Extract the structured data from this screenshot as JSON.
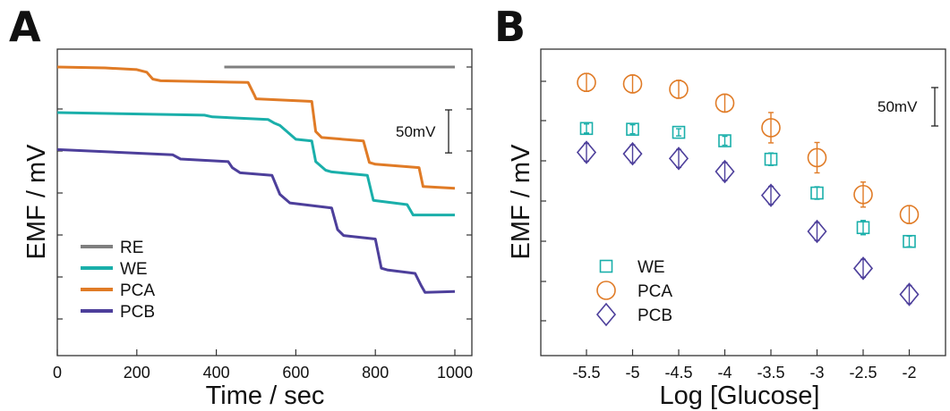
{
  "chart_data": [
    {
      "panel": "A",
      "type": "line",
      "xlabel": "Time / sec",
      "ylabel": "EMF / mV",
      "xlim": [
        0,
        1000
      ],
      "ylim": [
        -310,
        10
      ],
      "x_ticks": [
        "0",
        "200",
        "400",
        "600",
        "800",
        "1000"
      ],
      "scale_bar": {
        "label": "50mV",
        "value": 50
      },
      "legend": {
        "placement": "bottom-left"
      },
      "grid": false,
      "series": [
        {
          "name": "RE",
          "color": "#7f7f7f",
          "points": [
            [
              420,
              0
            ],
            [
              1000,
              0
            ]
          ]
        },
        {
          "name": "WE",
          "color": "#1aafaa",
          "points": [
            [
              0,
              -53
            ],
            [
              370,
              -56
            ],
            [
              390,
              -58
            ],
            [
              530,
              -61
            ],
            [
              545,
              -65
            ],
            [
              560,
              -68
            ],
            [
              600,
              -84
            ],
            [
              640,
              -86
            ],
            [
              650,
              -110
            ],
            [
              675,
              -120
            ],
            [
              690,
              -122
            ],
            [
              780,
              -126
            ],
            [
              795,
              -155
            ],
            [
              880,
              -160
            ],
            [
              895,
              -172
            ],
            [
              1000,
              -172
            ]
          ]
        },
        {
          "name": "PCA",
          "color": "#e07b26",
          "points": [
            [
              0,
              0
            ],
            [
              120,
              -1
            ],
            [
              200,
              -3
            ],
            [
              225,
              -6
            ],
            [
              240,
              -14
            ],
            [
              260,
              -16
            ],
            [
              480,
              -18
            ],
            [
              495,
              -32
            ],
            [
              500,
              -37
            ],
            [
              640,
              -40
            ],
            [
              650,
              -75
            ],
            [
              665,
              -82
            ],
            [
              770,
              -86
            ],
            [
              785,
              -111
            ],
            [
              800,
              -113
            ],
            [
              910,
              -117
            ],
            [
              920,
              -139
            ],
            [
              1000,
              -141
            ]
          ]
        },
        {
          "name": "PCB",
          "color": "#4d3f9b",
          "points": [
            [
              0,
              -96
            ],
            [
              290,
              -102
            ],
            [
              310,
              -107
            ],
            [
              430,
              -110
            ],
            [
              440,
              -117
            ],
            [
              460,
              -123
            ],
            [
              540,
              -126
            ],
            [
              560,
              -148
            ],
            [
              585,
              -158
            ],
            [
              690,
              -164
            ],
            [
              705,
              -189
            ],
            [
              720,
              -196
            ],
            [
              800,
              -200
            ],
            [
              815,
              -234
            ],
            [
              830,
              -236
            ],
            [
              900,
              -240
            ],
            [
              915,
              -254
            ],
            [
              925,
              -262
            ],
            [
              1000,
              -261
            ]
          ]
        }
      ]
    },
    {
      "panel": "B",
      "type": "scatter",
      "xlabel": "Log [Glucose]",
      "ylabel": "EMF / mV",
      "xlim": [
        -6,
        -1.6
      ],
      "ylim": [
        -380,
        10
      ],
      "x_ticks": [
        "-5.5",
        "-5",
        "-4.5",
        "-4",
        "-3.5",
        "-3",
        "-2.5",
        "-2"
      ],
      "scale_bar": {
        "label": "50mV",
        "value": 50
      },
      "legend": {
        "placement": "bottom-left"
      },
      "grid": false,
      "series": [
        {
          "name": "WE",
          "color": "#1aafaa",
          "marker": "square",
          "x": [
            -5.5,
            -5,
            -4.5,
            -4,
            -3.5,
            -3,
            -2.5,
            -2
          ],
          "y": [
            -80,
            -81,
            -85,
            -96,
            -120,
            -164,
            -209,
            -227
          ],
          "err": [
            5,
            5,
            4,
            5,
            7,
            7,
            8,
            6
          ]
        },
        {
          "name": "PCA",
          "color": "#e07b26",
          "marker": "circle",
          "x": [
            -5.5,
            -5,
            -4.5,
            -4,
            -3.5,
            -3,
            -2.5,
            -2
          ],
          "y": [
            -20,
            -22,
            -29,
            -47,
            -79,
            -118,
            -166,
            -192
          ],
          "err": [
            10,
            10,
            10,
            10,
            17,
            17,
            14,
            10
          ]
        },
        {
          "name": "PCB",
          "color": "#4d3f9b",
          "marker": "diamond",
          "x": [
            -5.5,
            -5,
            -4.5,
            -4,
            -3.5,
            -3,
            -2.5,
            -2
          ],
          "y": [
            -111,
            -113,
            -119,
            -136,
            -167,
            -214,
            -262,
            -296
          ],
          "err": [
            10,
            10,
            10,
            10,
            10,
            10,
            10,
            10
          ]
        }
      ]
    }
  ]
}
